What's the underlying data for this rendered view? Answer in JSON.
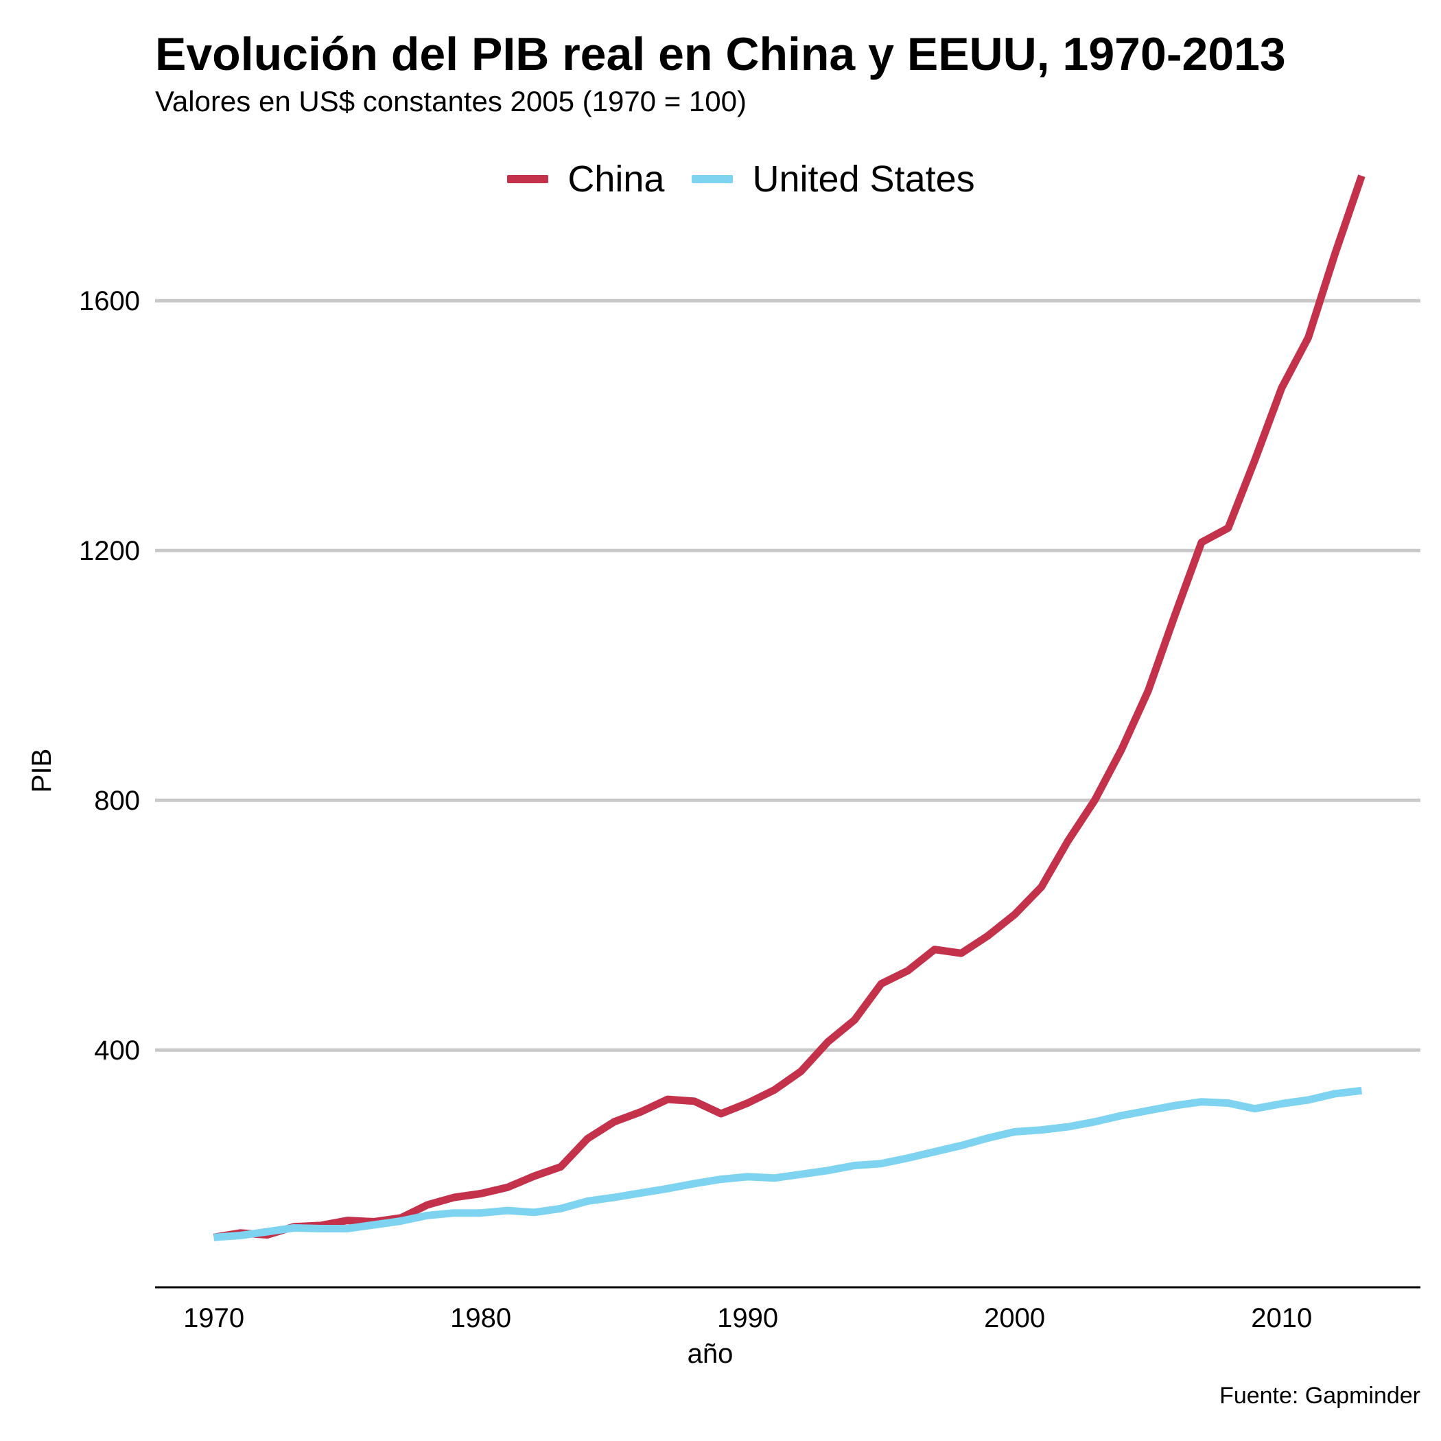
{
  "chart_data": {
    "type": "line",
    "title": "Evolución del PIB real en China y EEUU, 1970-2013",
    "subtitle": "Valores en US$ constantes 2005 (1970 = 100)",
    "xlabel": "año",
    "ylabel": "PIB",
    "caption": "Fuente: Gapminder",
    "xlim": [
      1967.8,
      2015.2
    ],
    "ylim": [
      20,
      1620
    ],
    "x_ticks": [
      1970,
      1980,
      1990,
      2000,
      2010
    ],
    "y_ticks": [
      400,
      800,
      1200,
      1600
    ],
    "grid": "horizontal major",
    "legend_position": "top",
    "x": [
      1970,
      1971,
      1972,
      1973,
      1974,
      1975,
      1976,
      1977,
      1978,
      1979,
      1980,
      1981,
      1982,
      1983,
      1984,
      1985,
      1986,
      1987,
      1988,
      1989,
      1990,
      1991,
      1992,
      1993,
      1994,
      1995,
      1996,
      1997,
      1998,
      1999,
      2000,
      2001,
      2002,
      2003,
      2004,
      2005,
      2006,
      2007,
      2008,
      2009,
      2010,
      2011,
      2012,
      2013
    ],
    "series": [
      {
        "name": "China",
        "color": "#C4314B",
        "values": [
          100,
          107,
          104,
          117,
          119,
          127,
          125,
          131,
          152,
          164,
          170,
          180,
          198,
          213,
          258,
          285,
          301,
          321,
          318,
          298,
          315,
          336,
          366,
          413,
          448,
          506,
          527,
          561,
          555,
          583,
          617,
          661,
          735,
          800,
          881,
          975,
          1096,
          1213,
          1236,
          1345,
          1460,
          1541,
          1675,
          1800
        ]
      },
      {
        "name": "United States",
        "color": "#7DD3F0",
        "values": [
          100,
          103,
          109,
          115,
          114,
          114,
          120,
          126,
          135,
          139,
          139,
          143,
          140,
          146,
          158,
          164,
          171,
          178,
          186,
          193,
          197,
          195,
          201,
          207,
          215,
          218,
          227,
          237,
          247,
          259,
          269,
          272,
          277,
          285,
          295,
          303,
          311,
          317,
          315,
          306,
          314,
          320,
          330,
          335
        ]
      }
    ]
  }
}
